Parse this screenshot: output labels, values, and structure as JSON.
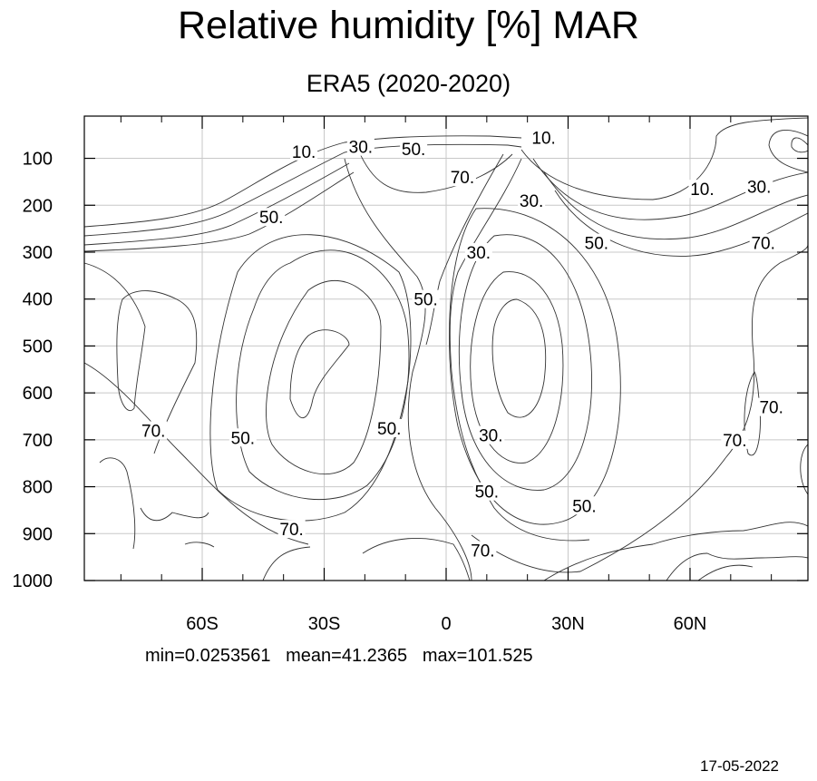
{
  "title": "Relative humidity [%] MAR",
  "subtitle": "ERA5 (2020-2020)",
  "stats": {
    "min_label": "min=0.0253561",
    "mean_label": "mean=41.2365",
    "max_label": "max=101.525"
  },
  "date": "17-05-2022",
  "chart_data": {
    "type": "contour",
    "title": "Relative humidity [%] MAR",
    "subtitle": "ERA5 (2020-2020)",
    "x_ticks": [
      {
        "value": -60,
        "label": "60S"
      },
      {
        "value": -30,
        "label": "30S"
      },
      {
        "value": 0,
        "label": "0"
      },
      {
        "value": 30,
        "label": "30N"
      },
      {
        "value": 60,
        "label": "60N"
      }
    ],
    "y_ticks": [
      100,
      200,
      300,
      400,
      500,
      600,
      700,
      800,
      900,
      1000
    ],
    "xlim": [
      -89,
      89
    ],
    "ylim": [
      1000,
      10
    ],
    "contour_levels": [
      10,
      30,
      50,
      70
    ],
    "grid": true,
    "contour_labels": [
      {
        "text": "10.",
        "lat": -35,
        "p": 85
      },
      {
        "text": "30.",
        "lat": -21,
        "p": 75
      },
      {
        "text": "50.",
        "lat": -8,
        "p": 80
      },
      {
        "text": "10.",
        "lat": 24,
        "p": 55
      },
      {
        "text": "70.",
        "lat": 4,
        "p": 140
      },
      {
        "text": "30.",
        "lat": 21,
        "p": 190
      },
      {
        "text": "10.",
        "lat": 63,
        "p": 165
      },
      {
        "text": "30.",
        "lat": 77,
        "p": 160
      },
      {
        "text": "50.",
        "lat": -43,
        "p": 225
      },
      {
        "text": "50.",
        "lat": 37,
        "p": 280
      },
      {
        "text": "70.",
        "lat": 78,
        "p": 280
      },
      {
        "text": "30.",
        "lat": 8,
        "p": 300
      },
      {
        "text": "50.",
        "lat": -5,
        "p": 400
      },
      {
        "text": "70.",
        "lat": 80,
        "p": 630
      },
      {
        "text": "70.",
        "lat": -72,
        "p": 680
      },
      {
        "text": "50.",
        "lat": -50,
        "p": 695
      },
      {
        "text": "50.",
        "lat": -14,
        "p": 675
      },
      {
        "text": "30.",
        "lat": 11,
        "p": 690
      },
      {
        "text": "70.",
        "lat": 71,
        "p": 700
      },
      {
        "text": "50.",
        "lat": 10,
        "p": 810
      },
      {
        "text": "50.",
        "lat": 34,
        "p": 840
      },
      {
        "text": "70.",
        "lat": -38,
        "p": 890
      },
      {
        "text": "70.",
        "lat": 9,
        "p": 935
      }
    ]
  }
}
